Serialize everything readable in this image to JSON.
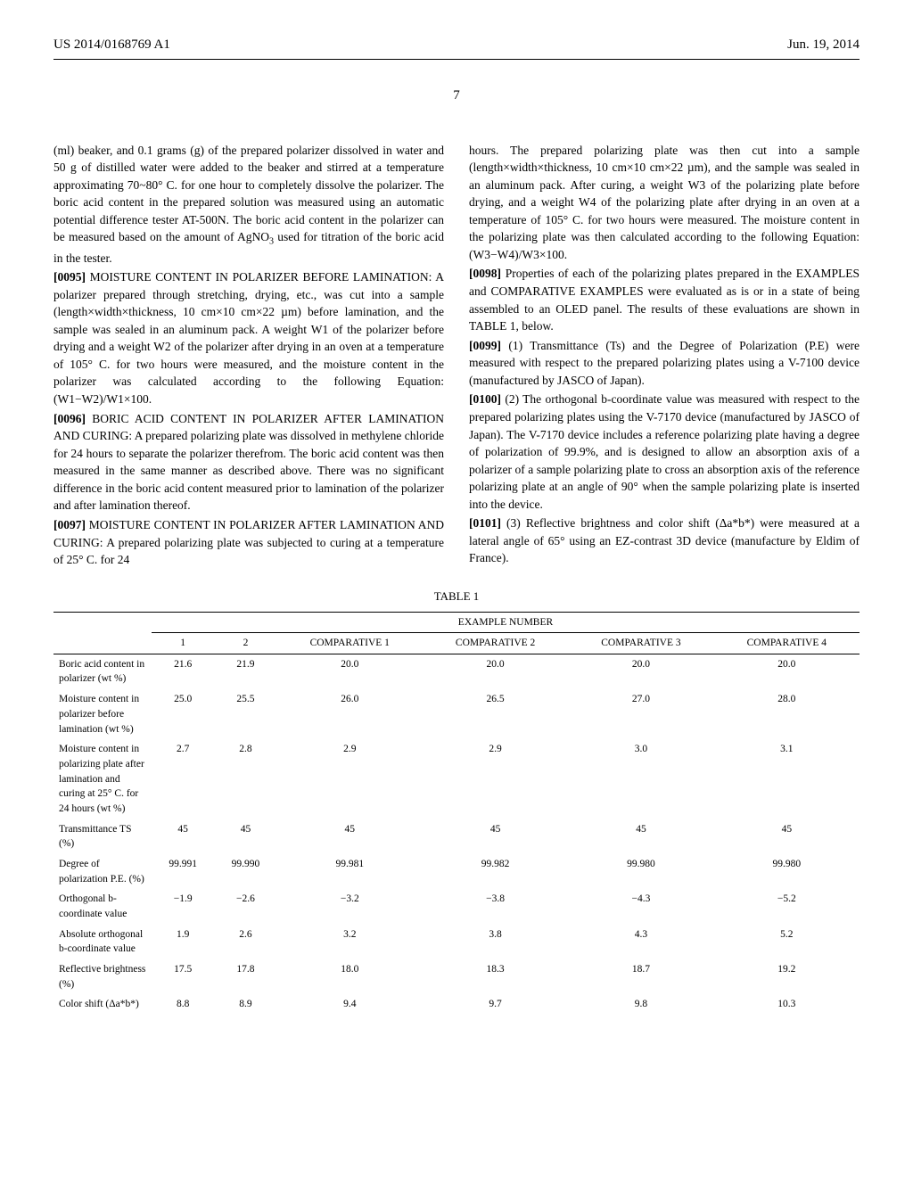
{
  "header": {
    "pubnum": "US 2014/0168769 A1",
    "date": "Jun. 19, 2014"
  },
  "page_number": "7",
  "left_col": {
    "p1": "(ml) beaker, and 0.1 grams (g) of the prepared polarizer dissolved in water and 50 g of distilled water were added to the beaker and stirred at a temperature approximating 70~80° C. for one hour to completely dissolve the polarizer. The boric acid content in the prepared solution was measured using an automatic potential difference tester AT-500N. The boric acid content in the polarizer can be measured based on the amount of AgNO",
    "p1_sub": "3",
    "p1_end": " used for titration of the boric acid in the tester.",
    "p2_num": "[0095]",
    "p2": " MOISTURE CONTENT IN POLARIZER BEFORE LAMINATION: A polarizer prepared through stretching, drying, etc., was cut into a sample (length×width×thickness, 10 cm×10 cm×22 µm) before lamination, and the sample was sealed in an aluminum pack. A weight W1 of the polarizer before drying and a weight W2 of the polarizer after drying in an oven at a temperature of 105° C. for two hours were measured, and the moisture content in the polarizer was calculated according to the following Equation: (W1−W2)/W1×100.",
    "p3_num": "[0096]",
    "p3": " BORIC ACID CONTENT IN POLARIZER AFTER LAMINATION AND CURING: A prepared polarizing plate was dissolved in methylene chloride for 24 hours to separate the polarizer therefrom. The boric acid content was then measured in the same manner as described above. There was no significant difference in the boric acid content measured prior to lamination of the polarizer and after lamination thereof.",
    "p4_num": "[0097]",
    "p4": " MOISTURE CONTENT IN POLARIZER AFTER LAMINATION AND CURING: A prepared polarizing plate was subjected to curing at a temperature of 25° C. for 24"
  },
  "right_col": {
    "p1": "hours. The prepared polarizing plate was then cut into a sample (length×width×thickness, 10 cm×10 cm×22 µm), and the sample was sealed in an aluminum pack. After curing, a weight W3 of the polarizing plate before drying, and a weight W4 of the polarizing plate after drying in an oven at a temperature of 105° C. for two hours were measured. The moisture content in the polarizing plate was then calculated according to the following Equation: (W3−W4)/W3×100.",
    "p2_num": "[0098]",
    "p2": " Properties of each of the polarizing plates prepared in the EXAMPLES and COMPARATIVE EXAMPLES were evaluated as is or in a state of being assembled to an OLED panel. The results of these evaluations are shown in TABLE 1, below.",
    "p3_num": "[0099]",
    "p3": " (1) Transmittance (Ts) and the Degree of Polarization (P.E) were measured with respect to the prepared polarizing plates using a V-7100 device (manufactured by JASCO of Japan).",
    "p4_num": "[0100]",
    "p4": " (2) The orthogonal b-coordinate value was measured with respect to the prepared polarizing plates using the V-7170 device (manufactured by JASCO of Japan). The V-7170 device includes a reference polarizing plate having a degree of polarization of 99.9%, and is designed to allow an absorption axis of a polarizer of a sample polarizing plate to cross an absorption axis of the reference polarizing plate at an angle of 90° when the sample polarizing plate is inserted into the device.",
    "p5_num": "[0101]",
    "p5": " (3) Reflective brightness and color shift (Δa*b*) were measured at a lateral angle of 65° using an EZ-contrast 3D device (manufacture by Eldim of France)."
  },
  "table": {
    "caption": "TABLE 1",
    "spanner": "EXAMPLE NUMBER",
    "col_headers": [
      "1",
      "2",
      "COMPARATIVE 1",
      "COMPARATIVE 2",
      "COMPARATIVE 3",
      "COMPARATIVE 4"
    ],
    "rows": [
      {
        "label": "Boric acid content in polarizer (wt %)",
        "vals": [
          "21.6",
          "21.9",
          "20.0",
          "20.0",
          "20.0",
          "20.0"
        ]
      },
      {
        "label": "Moisture content in polarizer before lamination (wt %)",
        "vals": [
          "25.0",
          "25.5",
          "26.0",
          "26.5",
          "27.0",
          "28.0"
        ]
      },
      {
        "label": "Moisture content in polarizing plate after lamination and curing at 25° C. for 24 hours (wt %)",
        "vals": [
          "2.7",
          "2.8",
          "2.9",
          "2.9",
          "3.0",
          "3.1"
        ]
      },
      {
        "label": "Transmittance TS (%)",
        "vals": [
          "45",
          "45",
          "45",
          "45",
          "45",
          "45"
        ]
      },
      {
        "label": "Degree of polarization P.E. (%)",
        "vals": [
          "99.991",
          "99.990",
          "99.981",
          "99.982",
          "99.980",
          "99.980"
        ]
      },
      {
        "label": "Orthogonal b-coordinate value",
        "vals": [
          "−1.9",
          "−2.6",
          "−3.2",
          "−3.8",
          "−4.3",
          "−5.2"
        ]
      },
      {
        "label": "Absolute orthogonal b-coordinate value",
        "vals": [
          "1.9",
          "2.6",
          "3.2",
          "3.8",
          "4.3",
          "5.2"
        ]
      },
      {
        "label": "Reflective brightness (%)",
        "vals": [
          "17.5",
          "17.8",
          "18.0",
          "18.3",
          "18.7",
          "19.2"
        ]
      },
      {
        "label": "Color shift (Δa*b*)",
        "vals": [
          "8.8",
          "8.9",
          "9.4",
          "9.7",
          "9.8",
          "10.3"
        ]
      }
    ]
  }
}
